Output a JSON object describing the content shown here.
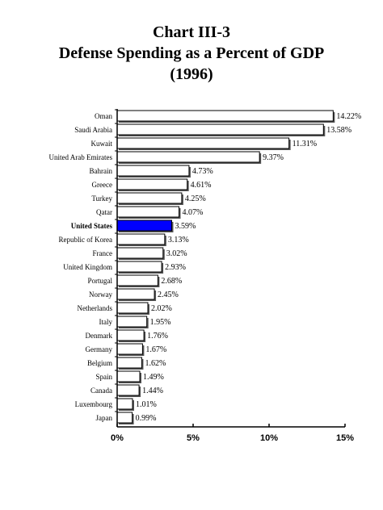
{
  "chart_data": {
    "type": "bar",
    "orientation": "horizontal",
    "title": "Chart III-3",
    "subtitle": "Defense Spending as a Percent of GDP",
    "subtitle2": "(1996)",
    "xlabel": "",
    "ylabel": "",
    "xlim": [
      0,
      15
    ],
    "x_ticks": [
      "0%",
      "5%",
      "10%",
      "15%"
    ],
    "x_tick_values": [
      0,
      5,
      10,
      15
    ],
    "grid": false,
    "highlight_category": "United States",
    "highlight_color": "#0000ff",
    "bar_color": "#ffffff",
    "bar_shadow_color": "#555555",
    "categories": [
      "Oman",
      "Saudi Arabia",
      "Kuwait",
      "United Arab Emirates",
      "Bahrain",
      "Greece",
      "Turkey",
      "Qatar",
      "United States",
      "Republic of Korea",
      "France",
      "United Kingdom",
      "Portugal",
      "Norway",
      "Netherlands",
      "Italy",
      "Denmark",
      "Germany",
      "Belgium",
      "Spain",
      "Canada",
      "Luxembourg",
      "Japan"
    ],
    "values": [
      14.22,
      13.58,
      11.31,
      9.37,
      4.73,
      4.61,
      4.25,
      4.07,
      3.59,
      3.13,
      3.02,
      2.93,
      2.68,
      2.45,
      2.02,
      1.95,
      1.76,
      1.67,
      1.62,
      1.49,
      1.44,
      1.01,
      0.99
    ],
    "value_labels": [
      "14.22%",
      "13.58%",
      "11.31%",
      "9.37%",
      "4.73%",
      "4.61%",
      "4.25%",
      "4.07%",
      "3.59%",
      "3.13%",
      "3.02%",
      "2.93%",
      "2.68%",
      "2.45%",
      "2.02%",
      "1.95%",
      "1.76%",
      "1.67%",
      "1.62%",
      "1.49%",
      "1.44%",
      "1.01%",
      "0.99%"
    ]
  }
}
